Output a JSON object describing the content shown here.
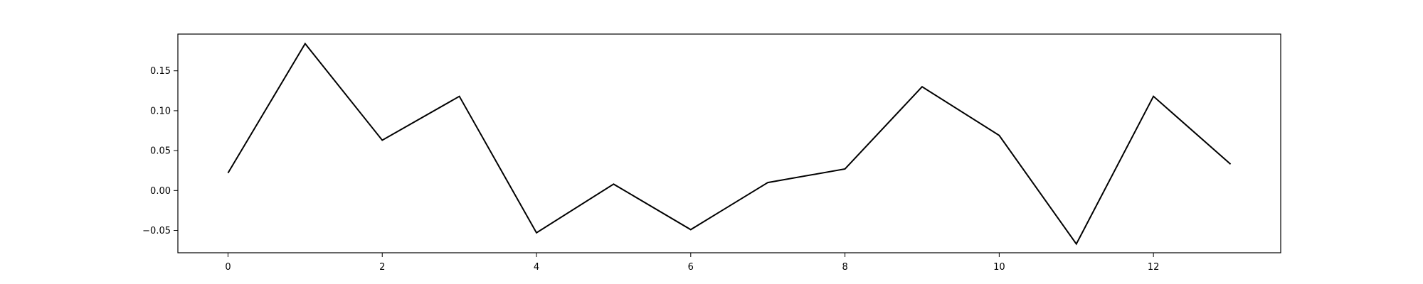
{
  "chart_data": {
    "type": "line",
    "title": "",
    "xlabel": "",
    "ylabel": "",
    "x": [
      0,
      1,
      2,
      3,
      4,
      5,
      6,
      7,
      8,
      9,
      10,
      11,
      12,
      13
    ],
    "series": [
      {
        "values": [
          0.022,
          0.184,
          0.063,
          0.118,
          -0.053,
          0.008,
          -0.049,
          0.01,
          0.027,
          0.13,
          0.069,
          -0.067,
          0.118,
          0.033
        ],
        "color": "#000000"
      }
    ],
    "xlim": [
      -0.65,
      13.65
    ],
    "ylim": [
      -0.078,
      0.196
    ],
    "xticks": [
      0,
      2,
      4,
      6,
      8,
      10,
      12
    ],
    "xtick_labels": [
      "0",
      "2",
      "4",
      "6",
      "8",
      "10",
      "12"
    ],
    "yticks": [
      -0.05,
      0.0,
      0.05,
      0.1,
      0.15
    ],
    "ytick_labels": [
      "−0.05",
      "0.00",
      "0.05",
      "0.10",
      "0.15"
    ],
    "grid": false,
    "legend": false
  }
}
